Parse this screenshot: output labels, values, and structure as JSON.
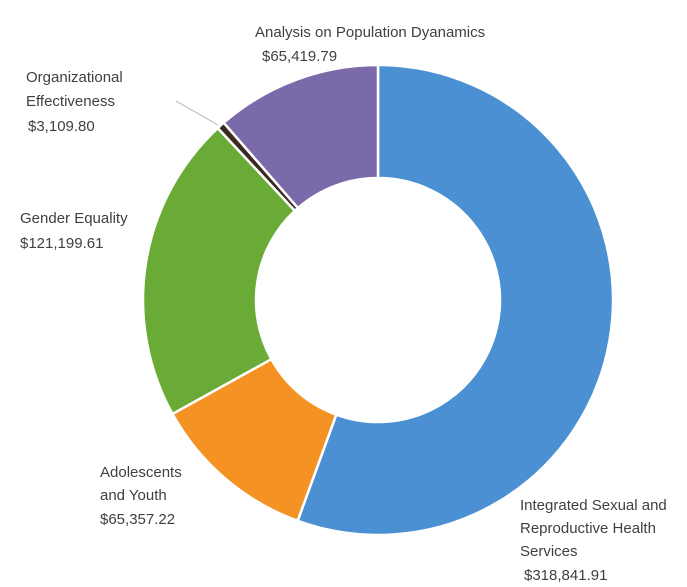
{
  "chart_data": {
    "type": "pie",
    "title": "",
    "donut": true,
    "categories": [
      "Integrated Sexual and Reproductive Health Services",
      "Adolescents and Youth",
      "Gender Equality",
      "Organizational Effectiveness",
      "Analysis on Population Dyanamics"
    ],
    "values": [
      318841.91,
      65357.22,
      121199.61,
      3109.8,
      65419.79
    ],
    "colors": [
      "#4a90d2",
      "#f59224",
      "#6aab38",
      "#3b2a22",
      "#7b6aaa"
    ],
    "legend": "none",
    "labels": [
      {
        "lines": [
          "Integrated Sexual and",
          "Reproductive Health",
          "Services"
        ],
        "value": "$318,841.91"
      },
      {
        "lines": [
          "Adolescents",
          "and Youth"
        ],
        "value": "$65,357.22"
      },
      {
        "lines": [
          "Gender Equality"
        ],
        "value": "$121,199.61"
      },
      {
        "lines": [
          "Organizational",
          "Effectiveness"
        ],
        "value": "$3,109.80"
      },
      {
        "lines": [
          "Analysis on Population Dyanamics"
        ],
        "value": "$65,419.79"
      }
    ]
  }
}
